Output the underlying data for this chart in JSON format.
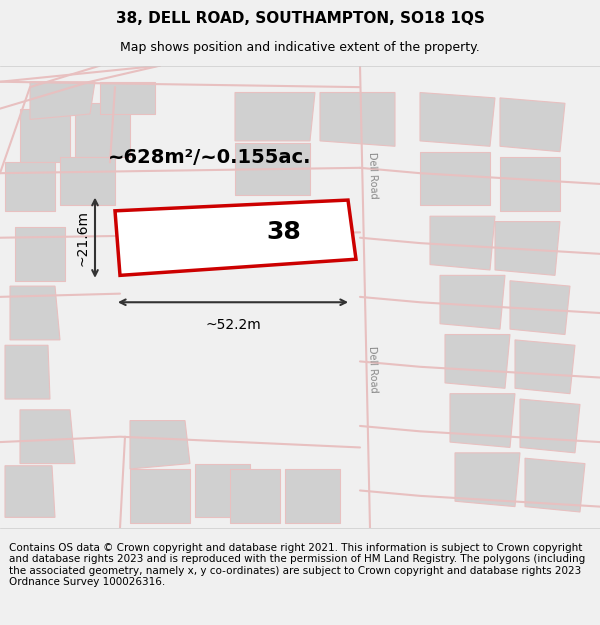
{
  "title": "38, DELL ROAD, SOUTHAMPTON, SO18 1QS",
  "subtitle": "Map shows position and indicative extent of the property.",
  "footer": "Contains OS data © Crown copyright and database right 2021. This information is subject to Crown copyright and database rights 2023 and is reproduced with the permission of HM Land Registry. The polygons (including the associated geometry, namely x, y co-ordinates) are subject to Crown copyright and database rights 2023 Ordnance Survey 100026316.",
  "area_label": "~628m²/~0.155ac.",
  "property_number": "38",
  "width_label": "~52.2m",
  "height_label": "~21.6m",
  "bg_color": "#f5f5f5",
  "map_bg": "#ffffff",
  "road_color": "#e8c8c8",
  "building_color": "#d8d8d8",
  "highlight_color": "#cc0000",
  "road_label": "Dell Road",
  "title_fontsize": 11,
  "subtitle_fontsize": 9,
  "footer_fontsize": 7.5
}
